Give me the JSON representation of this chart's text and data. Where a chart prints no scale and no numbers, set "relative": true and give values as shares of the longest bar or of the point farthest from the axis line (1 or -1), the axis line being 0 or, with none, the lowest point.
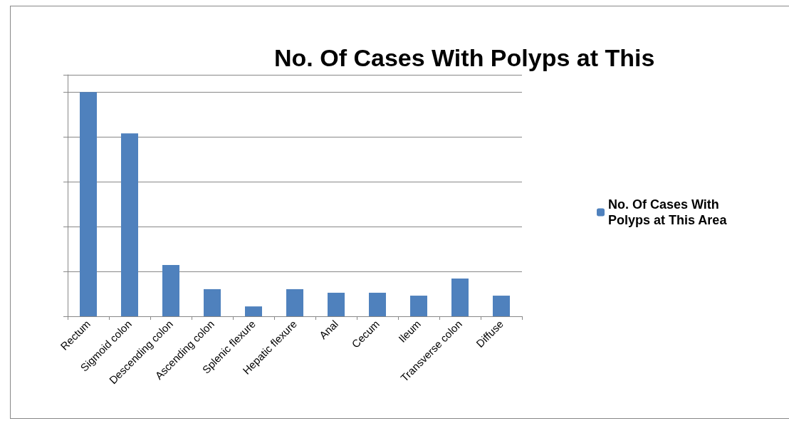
{
  "chart_data": {
    "type": "bar",
    "title": "No. Of Cases With Polyps at This",
    "categories": [
      "Rectum",
      "Sigmoid colon",
      "Descending colon",
      "Ascending colon",
      "Splenic flexure",
      "Hepatic flexure",
      "Anal",
      "Cecum",
      "Ileum",
      "Transverse colon",
      "Diffuse"
    ],
    "series": [
      {
        "name": "No. Of Cases With Polyps at This Area",
        "color": "#4f81bd",
        "values": [
          1,
          0.816,
          0.229,
          0.121,
          0.044,
          0.121,
          0.105,
          0.105,
          0.092,
          0.168,
          0.092
        ]
      }
    ],
    "relative": true,
    "grid": "y",
    "legend": "right"
  }
}
